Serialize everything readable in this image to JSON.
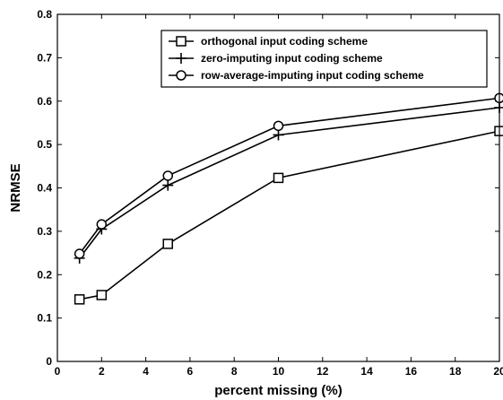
{
  "chart_data": {
    "type": "line",
    "xlabel": "percent missing (%)",
    "ylabel": "NRMSE",
    "xlim": [
      0,
      20
    ],
    "ylim": [
      0,
      0.8
    ],
    "x_ticks": [
      "0",
      "2",
      "4",
      "6",
      "8",
      "10",
      "12",
      "14",
      "16",
      "18",
      "20"
    ],
    "y_ticks": [
      "0",
      "0.1",
      "0.2",
      "0.3",
      "0.4",
      "0.5",
      "0.6",
      "0.7",
      "0.8"
    ],
    "grid": false,
    "legend_position": "top-right",
    "series": [
      {
        "name": "orthogonal input coding scheme",
        "marker": "square",
        "x": [
          1,
          2,
          5,
          10,
          20
        ],
        "values": [
          0.143,
          0.153,
          0.271,
          0.423,
          0.531
        ]
      },
      {
        "name": "zero-imputing input coding scheme",
        "marker": "plus",
        "x": [
          1,
          2,
          5,
          10,
          20
        ],
        "values": [
          0.238,
          0.305,
          0.406,
          0.522,
          0.585
        ]
      },
      {
        "name": "row-average-imputing input coding scheme",
        "marker": "circle",
        "x": [
          1,
          2,
          5,
          10,
          20
        ],
        "values": [
          0.248,
          0.316,
          0.428,
          0.543,
          0.607
        ]
      }
    ]
  }
}
